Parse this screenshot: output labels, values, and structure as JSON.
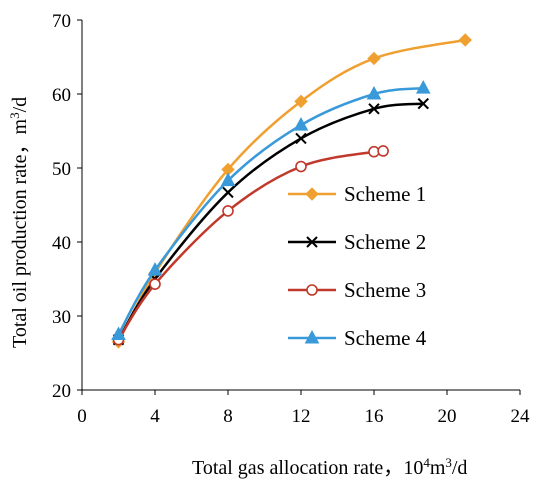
{
  "chart_data": {
    "type": "line",
    "xlabel": "Total gas allocation rate，",
    "xlabel_unit": {
      "base1": "10",
      "sup1": "4",
      "base2": "m",
      "sup2": "3",
      "base3": "/d"
    },
    "ylabel": "Total oil production rate，",
    "ylabel_unit": {
      "base1": "m",
      "sup1": "3",
      "base2": "/d"
    },
    "xlim": [
      0,
      24
    ],
    "ylim": [
      20,
      70
    ],
    "xticks": [
      0,
      4,
      8,
      12,
      16,
      20,
      24
    ],
    "yticks": [
      20,
      30,
      40,
      50,
      60,
      70
    ],
    "grid": false,
    "legend_position": "center-right",
    "series": [
      {
        "name": "Scheme 1",
        "color": "#F0A030",
        "marker": "diamond",
        "x": [
          2,
          4,
          8,
          12,
          16,
          21
        ],
        "y": [
          26.5,
          35.8,
          49.8,
          59.0,
          64.8,
          67.3
        ]
      },
      {
        "name": "Scheme 2",
        "color": "#000000",
        "marker": "x",
        "x": [
          2,
          4,
          8,
          12,
          16,
          18.7
        ],
        "y": [
          26.8,
          35.0,
          46.7,
          54.0,
          58.0,
          58.7
        ]
      },
      {
        "name": "Scheme 3",
        "color": "#C0392B",
        "marker": "circle-open",
        "x": [
          2,
          4,
          8,
          12,
          16,
          16.5
        ],
        "y": [
          26.8,
          34.3,
          44.2,
          50.2,
          52.2,
          52.3
        ]
      },
      {
        "name": "Scheme 4",
        "color": "#3A9AD9",
        "marker": "triangle",
        "x": [
          2,
          4,
          8,
          12,
          16,
          18.7
        ],
        "y": [
          27.5,
          36.2,
          48.3,
          55.8,
          60.0,
          60.8
        ]
      }
    ]
  }
}
